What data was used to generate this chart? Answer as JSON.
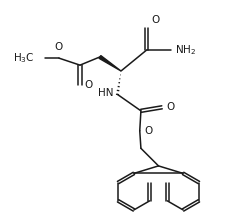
{
  "bg_color": "#ffffff",
  "line_color": "#1a1a1a",
  "line_width": 1.1,
  "font_size": 7.5,
  "figsize": [
    2.42,
    2.24
  ],
  "dpi": 100,
  "xlim": [
    0,
    10
  ],
  "ylim": [
    0,
    9.5
  ]
}
